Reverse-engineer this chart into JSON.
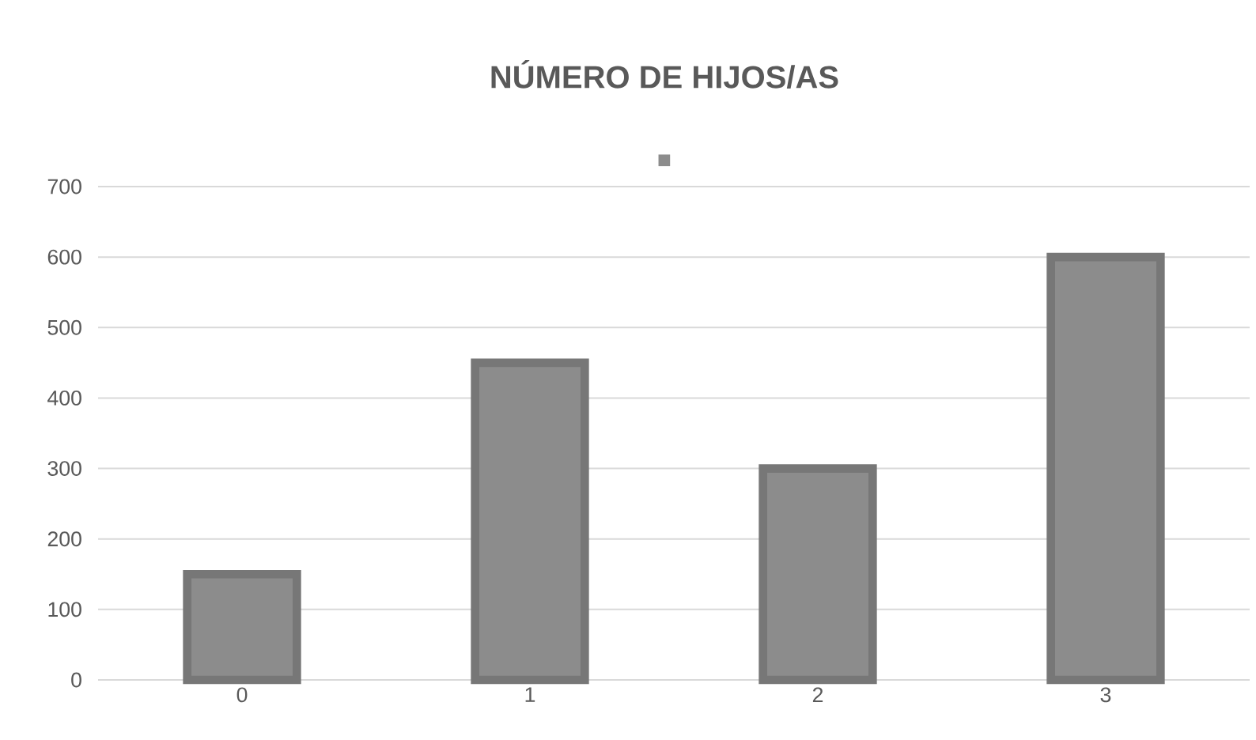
{
  "chart_data": {
    "type": "bar",
    "title": "NÚMERO DE HIJOS/AS",
    "categories": [
      "0",
      "1",
      "2",
      "3"
    ],
    "values": [
      150,
      450,
      300,
      600
    ],
    "color": "#8c8c8c",
    "ylim": [
      0,
      700
    ],
    "yticks": [
      0,
      100,
      200,
      300,
      400,
      500,
      600,
      700
    ],
    "grid": "y"
  }
}
